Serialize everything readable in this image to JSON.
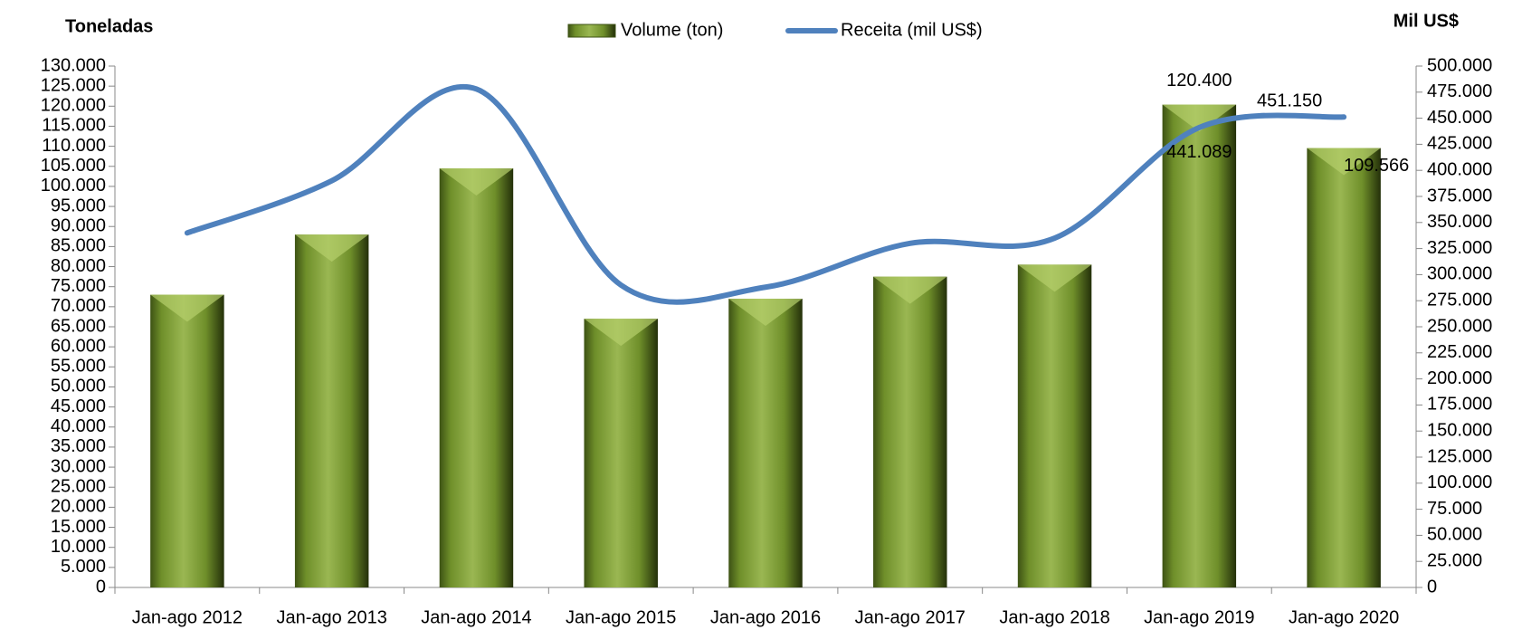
{
  "chart_data": {
    "type": "bar",
    "ylabel": "Toneladas",
    "y2label": "Mil US$",
    "categories": [
      "Jan-ago 2012",
      "Jan-ago 2013",
      "Jan-ago 2014",
      "Jan-ago 2015",
      "Jan-ago 2016",
      "Jan-ago 2017",
      "Jan-ago 2018",
      "Jan-ago 2019",
      "Jan-ago 2020"
    ],
    "series": [
      {
        "name": "Volume (ton)",
        "type": "bar",
        "color": "#6f8f2a",
        "values": [
          73000,
          88000,
          104500,
          67000,
          72000,
          77500,
          80500,
          120400,
          109566
        ],
        "value_labels": [
          null,
          null,
          null,
          null,
          null,
          null,
          null,
          "120.400",
          "109.566"
        ]
      },
      {
        "name": "Receita (mil US$)",
        "type": "line",
        "axis": "y2",
        "color": "#4f81bd",
        "values": [
          340000,
          390000,
          478000,
          290000,
          288000,
          330000,
          335000,
          441089,
          451150
        ],
        "value_labels": [
          null,
          null,
          null,
          null,
          null,
          null,
          null,
          "441.089",
          "451.150"
        ]
      }
    ],
    "ylim": [
      0,
      130000
    ],
    "yticks": [
      0,
      {
        "value": 5000,
        "label": "5.000"
      },
      {
        "value": 10000,
        "label": "10.000"
      },
      {
        "value": 15000,
        "label": "15.000"
      },
      {
        "value": 20000,
        "label": "20.000"
      },
      {
        "value": 25000,
        "label": "25.000"
      },
      {
        "value": 30000,
        "label": "30.000"
      },
      {
        "value": 35000,
        "label": "35.000"
      },
      {
        "value": 40000,
        "label": "40.000"
      },
      {
        "value": 45000,
        "label": "45.000"
      },
      {
        "value": 50000,
        "label": "50.000"
      },
      {
        "value": 55000,
        "label": "55.000"
      },
      {
        "value": 60000,
        "label": "60.000"
      },
      {
        "value": 65000,
        "label": "65.000"
      },
      {
        "value": 70000,
        "label": "70.000"
      },
      {
        "value": 75000,
        "label": "75.000"
      },
      {
        "value": 80000,
        "label": "80.000"
      },
      {
        "value": 85000,
        "label": "85.000"
      },
      {
        "value": 90000,
        "label": "90.000"
      },
      {
        "value": 95000,
        "label": "95.000"
      },
      {
        "value": 100000,
        "label": "100.000"
      },
      {
        "value": 105000,
        "label": "105.000"
      },
      {
        "value": 110000,
        "label": "110.000"
      },
      {
        "value": 115000,
        "label": "115.000"
      },
      {
        "value": 120000,
        "label": "120.000"
      },
      {
        "value": 125000,
        "label": "125.000"
      },
      {
        "value": 130000,
        "label": "130.000"
      }
    ],
    "y2lim": [
      0,
      500000
    ],
    "y2ticks": [
      0,
      {
        "value": 25000,
        "label": "25.000"
      },
      {
        "value": 50000,
        "label": "50.000"
      },
      {
        "value": 75000,
        "label": "75.000"
      },
      {
        "value": 100000,
        "label": "100.000"
      },
      {
        "value": 125000,
        "label": "125.000"
      },
      {
        "value": 150000,
        "label": "150.000"
      },
      {
        "value": 175000,
        "label": "175.000"
      },
      {
        "value": 200000,
        "label": "200.000"
      },
      {
        "value": 225000,
        "label": "225.000"
      },
      {
        "value": 250000,
        "label": "250.000"
      },
      {
        "value": 275000,
        "label": "275.000"
      },
      {
        "value": 300000,
        "label": "300.000"
      },
      {
        "value": 325000,
        "label": "325.000"
      },
      {
        "value": 350000,
        "label": "350.000"
      },
      {
        "value": 375000,
        "label": "375.000"
      },
      {
        "value": 400000,
        "label": "400.000"
      },
      {
        "value": 425000,
        "label": "425.000"
      },
      {
        "value": 450000,
        "label": "450.000"
      },
      {
        "value": 475000,
        "label": "475.000"
      },
      {
        "value": 500000,
        "label": "500.000"
      }
    ],
    "grid": false,
    "legend": "top"
  }
}
